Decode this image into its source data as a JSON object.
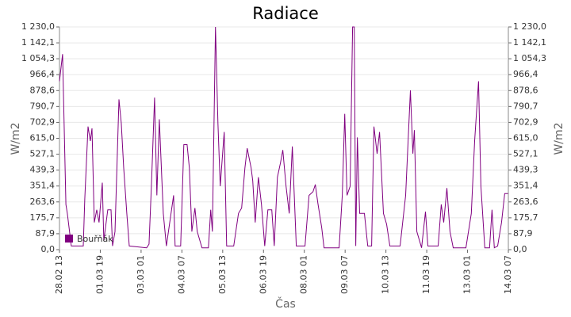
{
  "chart_data": {
    "type": "line",
    "title": "Radiace",
    "xlabel": "Čas",
    "ylabel": "W/m2",
    "x": [
      0,
      2.3,
      4.7,
      5.8,
      8.7,
      17.5,
      18.6,
      21,
      22.7,
      23.9,
      25.6,
      27.4,
      29.1,
      31.5,
      32.6,
      35.5,
      37.9,
      39,
      40.8,
      43.7,
      45.4,
      47.2,
      49.5,
      51.3,
      64.1,
      65.8,
      67.6,
      69.9,
      71.6,
      73.4,
      76.3,
      78.6,
      83.9,
      85,
      89.1,
      91.4,
      93.8,
      95.5,
      97.3,
      99.6,
      101.3,
      104.8,
      109.5,
      111.2,
      112.4,
      114.7,
      116.5,
      118.2,
      121.1,
      122.9,
      128.1,
      131.6,
      133.9,
      136.3,
      138,
      140.9,
      142.1,
      143.9,
      146.2,
      148.5,
      150.9,
      153.2,
      156.1,
      157.9,
      160.2,
      162.5,
      164.2,
      166.6,
      168.9,
      171.2,
      174.1,
      180.5,
      183.5,
      186.4,
      188.1,
      189.9,
      192.8,
      194.5,
      205.6,
      207.9,
      209.7,
      211.4,
      213.7,
      215.5,
      216.7,
      217.8,
      219,
      220.7,
      224.2,
      226.6,
      229.5,
      231.2,
      233.5,
      235.3,
      238.2,
      240.5,
      242.9,
      250.4,
      254.5,
      258,
      259.8,
      260.9,
      262.7,
      266.2,
      269.1,
      270.8,
      278.4,
      280.7,
      282.5,
      284.8,
      287.1,
      289.5,
      298.8,
      302.8,
      305.2,
      308.1,
      309.8,
      312.7,
      316.2,
      318,
      319.7,
      322.1,
      325,
      327.3,
      329.7
    ],
    "series": [
      {
        "name": "Bouřňák",
        "color": "#800080",
        "values": [
          930,
          1080,
          250,
          200,
          20,
          20,
          280,
          680,
          600,
          670,
          150,
          220,
          150,
          370,
          50,
          220,
          220,
          20,
          100,
          830,
          700,
          450,
          200,
          20,
          10,
          30,
          350,
          840,
          300,
          720,
          200,
          20,
          300,
          20,
          20,
          580,
          580,
          450,
          100,
          230,
          100,
          10,
          10,
          220,
          100,
          1230,
          700,
          350,
          650,
          20,
          20,
          200,
          230,
          450,
          560,
          450,
          380,
          150,
          400,
          250,
          20,
          220,
          220,
          20,
          400,
          480,
          550,
          350,
          200,
          570,
          20,
          20,
          300,
          320,
          360,
          260,
          120,
          10,
          10,
          300,
          750,
          300,
          350,
          1230,
          1230,
          20,
          620,
          200,
          200,
          20,
          20,
          680,
          530,
          650,
          200,
          140,
          20,
          20,
          300,
          880,
          530,
          660,
          100,
          10,
          210,
          20,
          20,
          250,
          150,
          340,
          100,
          10,
          10,
          200,
          600,
          930,
          350,
          10,
          10,
          220,
          10,
          20,
          150,
          310,
          310
        ]
      }
    ],
    "xlim": [
      0,
      330
    ],
    "xticks": [
      {
        "value": 0,
        "label": "28.02 13"
      },
      {
        "value": 30,
        "label": "01.03 19"
      },
      {
        "value": 60,
        "label": "03.03 01"
      },
      {
        "value": 90,
        "label": "04.03 07"
      },
      {
        "value": 120,
        "label": "05.03 13"
      },
      {
        "value": 150,
        "label": "06.03 19"
      },
      {
        "value": 180,
        "label": "08.03 01"
      },
      {
        "value": 210,
        "label": "09.03 07"
      },
      {
        "value": 240,
        "label": "10.03 13"
      },
      {
        "value": 270,
        "label": "11.03 19"
      },
      {
        "value": 300,
        "label": "13.03 01"
      },
      {
        "value": 330,
        "label": "14.03 07"
      }
    ],
    "ylim": [
      0,
      1230
    ],
    "yticks": [
      {
        "value": 0,
        "label": "0,0"
      },
      {
        "value": 87.9,
        "label": "87,9"
      },
      {
        "value": 175.7,
        "label": "175,7"
      },
      {
        "value": 263.6,
        "label": "263,6"
      },
      {
        "value": 351.4,
        "label": "351,4"
      },
      {
        "value": 439.3,
        "label": "439,3"
      },
      {
        "value": 527.1,
        "label": "527,1"
      },
      {
        "value": 615,
        "label": "615,0"
      },
      {
        "value": 702.9,
        "label": "702,9"
      },
      {
        "value": 790.7,
        "label": "790,7"
      },
      {
        "value": 878.6,
        "label": "878,6"
      },
      {
        "value": 966.4,
        "label": "966,4"
      },
      {
        "value": 1054.3,
        "label": "1 054,3"
      },
      {
        "value": 1142.1,
        "label": "1 142,1"
      },
      {
        "value": 1230,
        "label": "1 230,0"
      }
    ],
    "grid": true
  }
}
